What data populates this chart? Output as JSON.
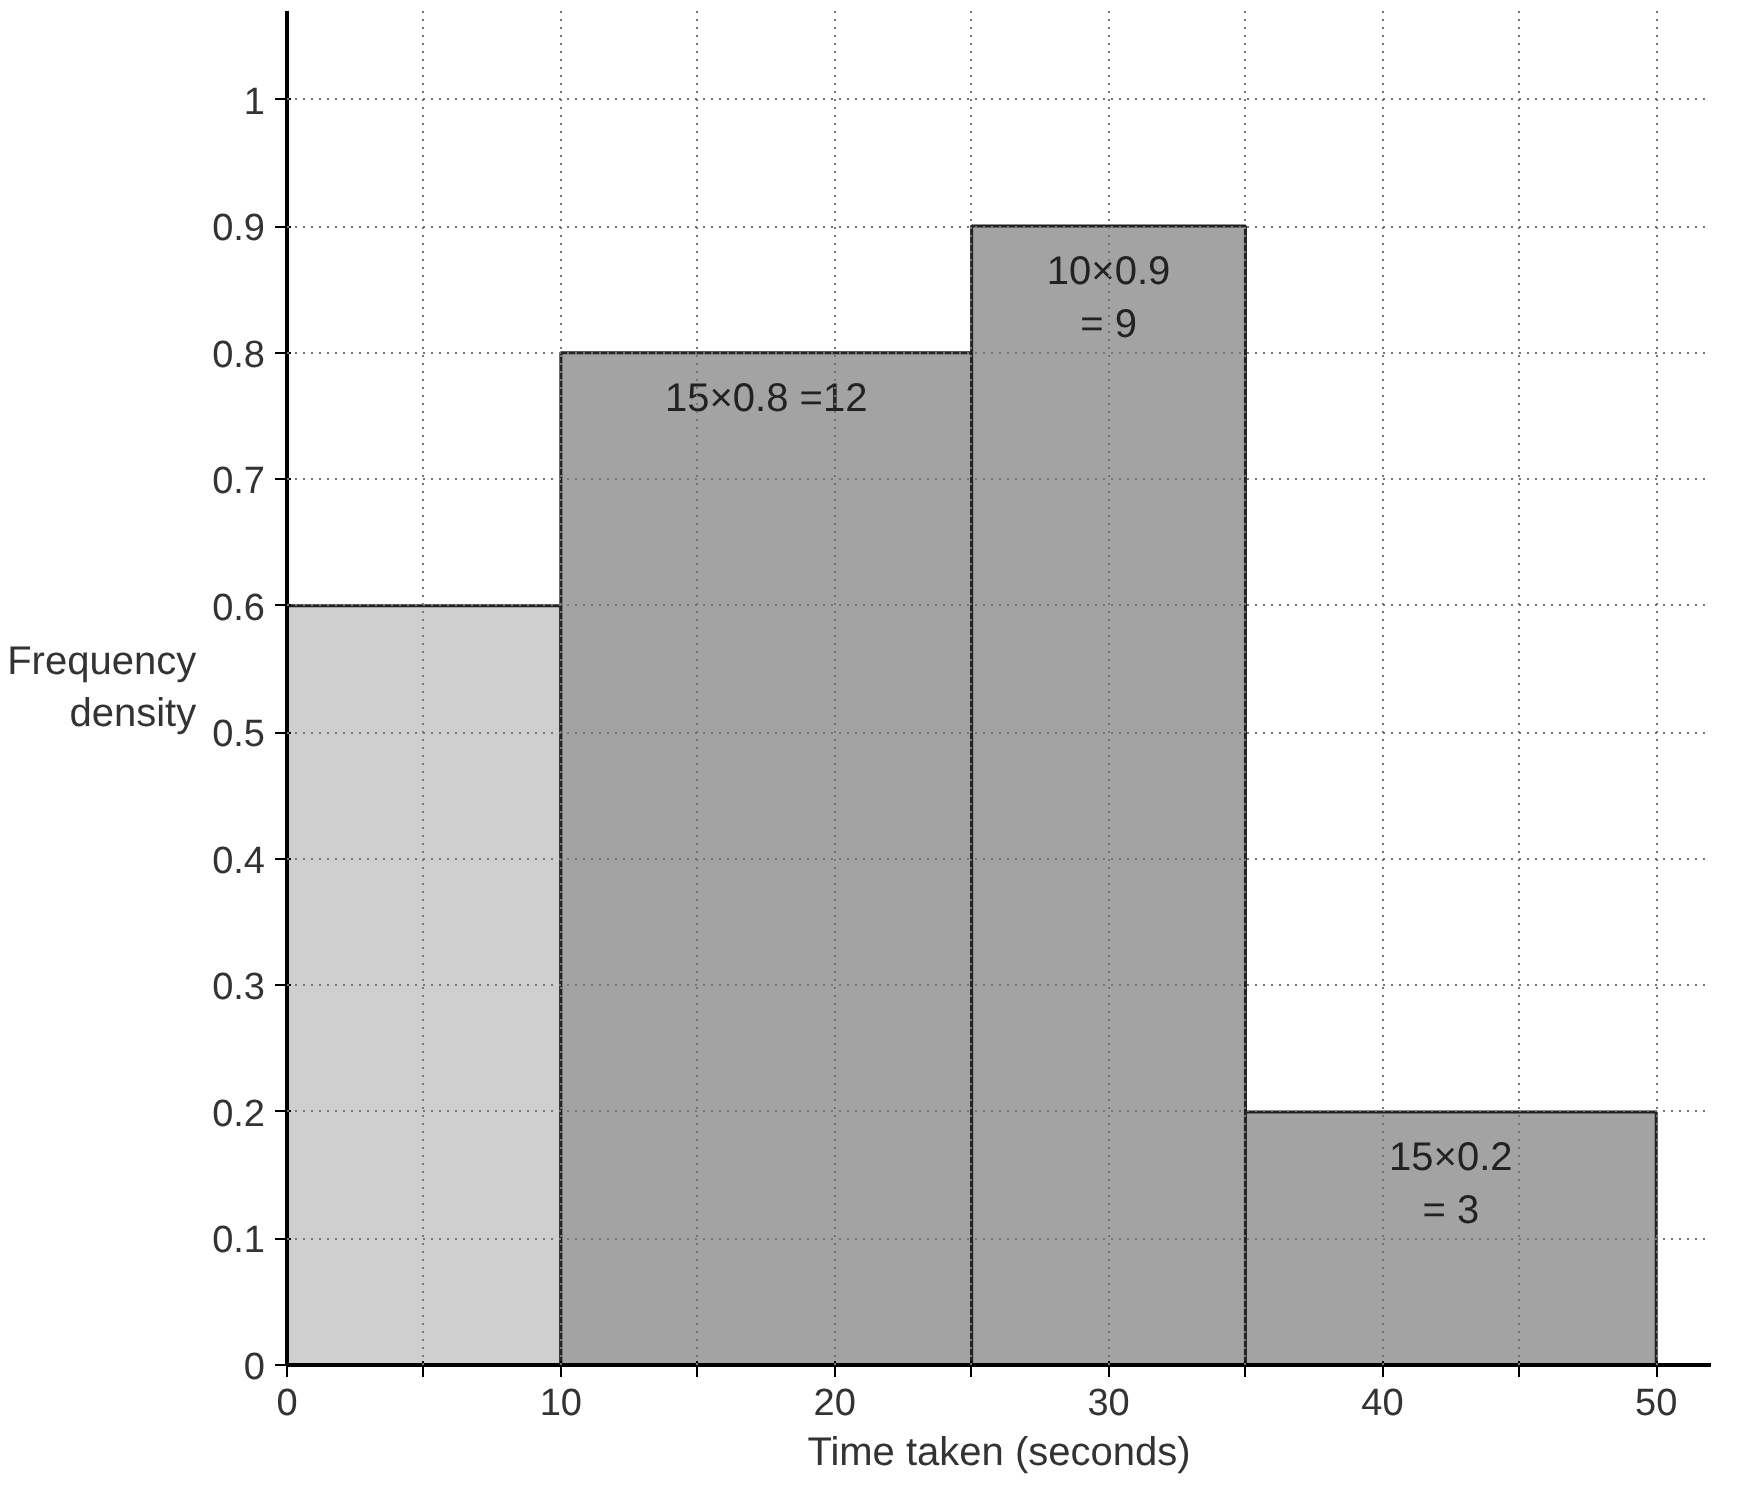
{
  "chart_data": {
    "type": "histogram",
    "xlabel": "Time taken (seconds)",
    "ylabel": "Frequency\ndensity",
    "bins": [
      0,
      10,
      25,
      35,
      50
    ],
    "values": [
      0.6,
      0.8,
      0.9,
      0.2
    ],
    "colors": [
      "#cfcfcf",
      "#a3a3a3",
      "#a3a3a3",
      "#a3a3a3"
    ],
    "xlim": [
      0,
      52
    ],
    "ylim": [
      0,
      1.07
    ],
    "xticks": [
      0,
      {
        "value": 5,
        "label": null
      },
      10,
      {
        "value": 15,
        "label": null
      },
      20,
      {
        "value": 25,
        "label": null
      },
      30,
      {
        "value": 35,
        "label": null
      },
      40,
      {
        "value": 45,
        "label": null
      },
      50
    ],
    "yticks": [
      0,
      0.1,
      0.2,
      0.3,
      0.4,
      0.5,
      0.6,
      0.7,
      0.8,
      0.9,
      1
    ],
    "grid": true,
    "annotations": [
      "15×0.8 =12",
      "10×0.9\n= 9",
      "15×0.2\n= 3"
    ]
  }
}
